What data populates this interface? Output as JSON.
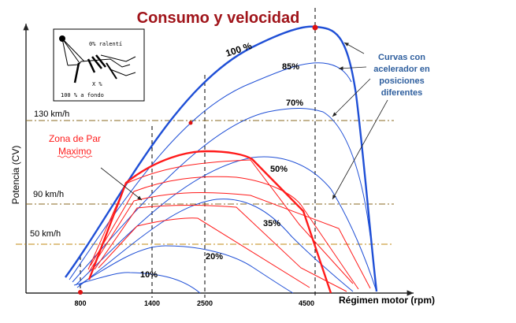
{
  "title": "Consumo y velocidad",
  "y_axis_label": "Potencia (CV)",
  "x_axis_label": "Régimen motor (rpm)",
  "x_ticks": [
    "800",
    "1400",
    "2500",
    "4500"
  ],
  "speed_lines": [
    "130 km/h",
    "90 km/h",
    "50 km/h"
  ],
  "curve_labels": [
    "100 %",
    "85%",
    "70%",
    "50%",
    "35%",
    "20%",
    "10%"
  ],
  "torque_zone_label": [
    "Zona de Par",
    "Maximo"
  ],
  "annotation": [
    "Curvas con",
    "acelerador en",
    "posiciones",
    "diferentes"
  ],
  "inset": {
    "idle": "0% ralentí",
    "partial": "X %",
    "full": "100 % a fondo"
  },
  "colors": {
    "title": "#a0141a",
    "blue_curves": "#1f4fd6",
    "red_curves": "#ff1a1a",
    "annotation": "#2f5f9e",
    "speed_line": "#8a6a20"
  }
}
